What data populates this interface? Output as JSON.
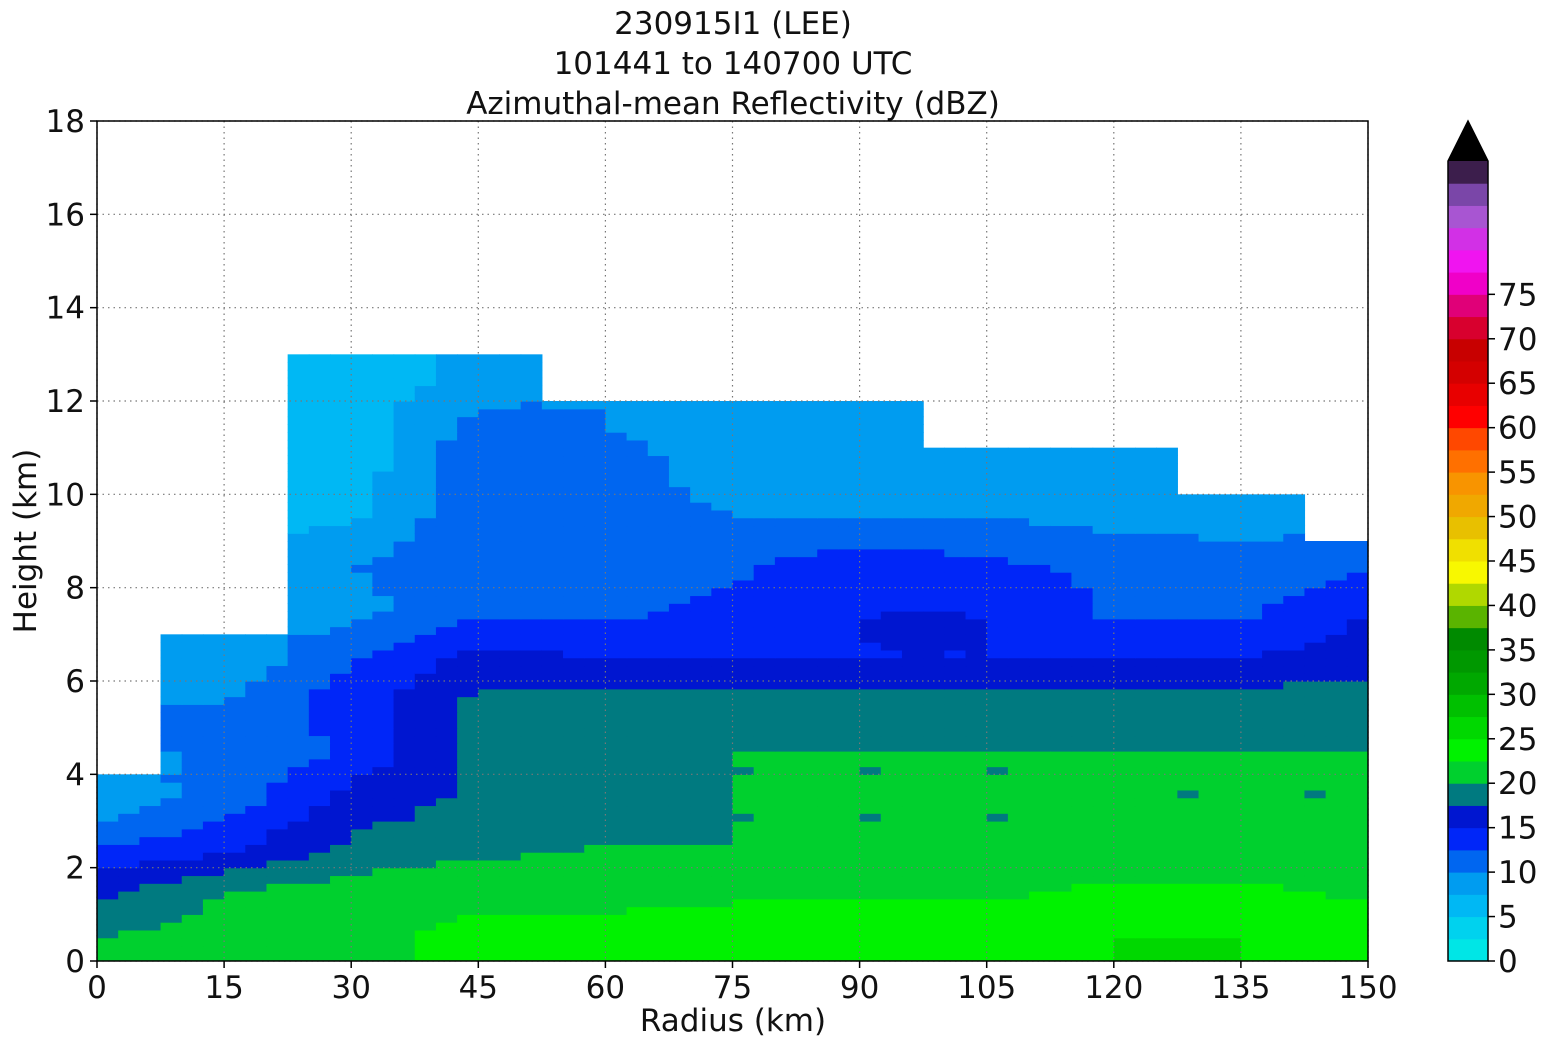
{
  "chart_data": {
    "type": "heatmap",
    "title": [
      "230915I1 (LEE)",
      "101441 to 140700 UTC",
      "Azimuthal-mean Reflectivity (dBZ)"
    ],
    "xlabel": "Radius (km)",
    "ylabel": "Height (km)",
    "xlim": [
      0,
      150
    ],
    "ylim": [
      0,
      18
    ],
    "xticks": [
      "0",
      "15",
      "30",
      "45",
      "60",
      "75",
      "90",
      "105",
      "120",
      "135",
      "150"
    ],
    "yticks": [
      "0",
      "2",
      "4",
      "6",
      "8",
      "10",
      "12",
      "14",
      "16",
      "18"
    ],
    "grid": true,
    "colorbar": {
      "ticks": [
        "0",
        "5",
        "10",
        "15",
        "20",
        "25",
        "30",
        "35",
        "40",
        "45",
        "50",
        "55",
        "60",
        "65",
        "70",
        "75"
      ],
      "levels_step": 2.5,
      "extend": "max",
      "colors": [
        "#00e6e6",
        "#00d2ee",
        "#00b8f4",
        "#009cf0",
        "#0066f0",
        "#0026f8",
        "#0016d0",
        "#007a80",
        "#00d02e",
        "#00f200",
        "#00d800",
        "#00c000",
        "#00a800",
        "#009800",
        "#008a00",
        "#5ab400",
        "#b0d800",
        "#f8f800",
        "#f0e000",
        "#e8c000",
        "#f0a800",
        "#f89400",
        "#ff7000",
        "#ff4800",
        "#ff0000",
        "#e80000",
        "#d40000",
        "#c80000",
        "#d8002e",
        "#e00078",
        "#f000c8",
        "#f014f0",
        "#d230e6",
        "#a855d2",
        "#7a46a8",
        "#3c1e4c"
      ],
      "extend_color": "#000000"
    },
    "height_profile_km": [
      0.5,
      1.5,
      2.5,
      3.5,
      4.5,
      5.5,
      6.5,
      7.5,
      8.5,
      9.5,
      10.5,
      11.5,
      12.5
    ],
    "radius_km": [
      0,
      15,
      30,
      45,
      60,
      75,
      90,
      105,
      120,
      135,
      150
    ],
    "mean_dbz_rows": [
      [
        20,
        21,
        22,
        23,
        23,
        24,
        24,
        24,
        25,
        25,
        24
      ],
      [
        17,
        20,
        21,
        22,
        22,
        22,
        22,
        22,
        23,
        23,
        22
      ],
      [
        12,
        14,
        18,
        19,
        20,
        20,
        20,
        20,
        20,
        21,
        20
      ],
      [
        8,
        11,
        16,
        18,
        19,
        20,
        20,
        20,
        20,
        20,
        20
      ],
      [
        null,
        10,
        13,
        18,
        19,
        20,
        20,
        20,
        20,
        20,
        20
      ],
      [
        null,
        10,
        14,
        18,
        19,
        19,
        19,
        19,
        19,
        19,
        19
      ],
      [
        null,
        8,
        12,
        16,
        15,
        15,
        15,
        15,
        15,
        15,
        16
      ],
      [
        null,
        null,
        9,
        12,
        12,
        13,
        15,
        15,
        12,
        12,
        15
      ],
      [
        null,
        null,
        10,
        12,
        12,
        12,
        14,
        13,
        12,
        11,
        12
      ],
      [
        null,
        null,
        7,
        12,
        11,
        10,
        10,
        10,
        9,
        9,
        null
      ],
      [
        null,
        null,
        6,
        12,
        11,
        9,
        9,
        9,
        9,
        null,
        null
      ],
      [
        null,
        null,
        6,
        11,
        10,
        9,
        8,
        null,
        null,
        null,
        null
      ],
      [
        null,
        null,
        6,
        8,
        null,
        null,
        null,
        null,
        null,
        null,
        null
      ]
    ]
  }
}
